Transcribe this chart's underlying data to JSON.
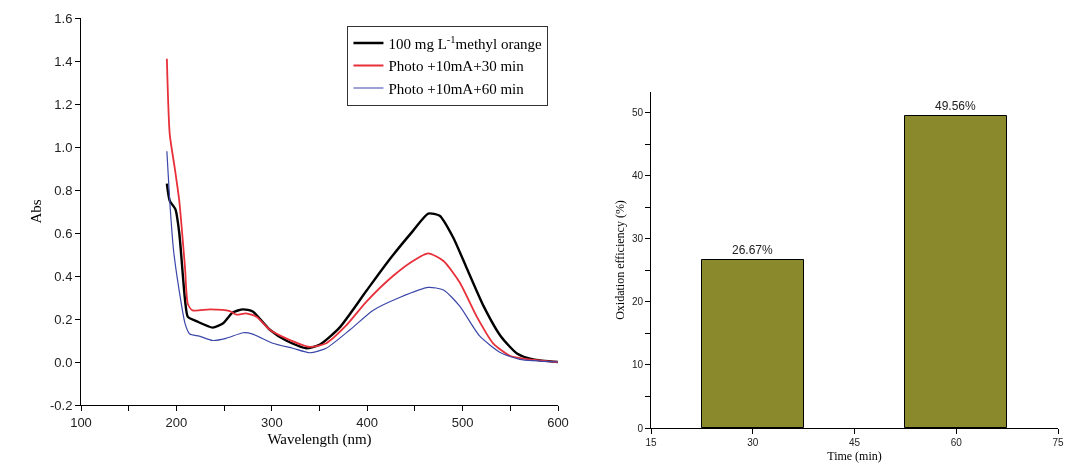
{
  "chart_data": [
    {
      "type": "line",
      "xlabel": "Wavelength (nm)",
      "ylabel": "Abs",
      "xlim": [
        100,
        600
      ],
      "ylim": [
        -0.2,
        1.6
      ],
      "xticks": [
        100,
        {
          "value": 150,
          "label": null
        },
        200,
        {
          "value": 250,
          "label": null
        },
        300,
        {
          "value": 350,
          "label": null
        },
        400,
        {
          "value": 450,
          "label": null
        },
        500,
        {
          "value": 550,
          "label": null
        },
        600
      ],
      "yticks": [
        {
          "value": -0.2,
          "label": "-0.2"
        },
        {
          "value": 0,
          "label": "0.0"
        },
        0.2,
        0.4,
        0.6,
        0.8,
        {
          "value": 1,
          "label": "1.0"
        },
        1.2,
        1.4,
        1.6
      ],
      "grid": false,
      "legend": "top right",
      "marker": "none",
      "line_style": "solid",
      "series": [
        {
          "name": "100 mg L$^{-1}$methyl orange",
          "color": "#000000",
          "x": [
            190,
            193,
            199,
            203,
            209,
            212,
            221,
            238,
            249,
            259,
            270,
            280,
            298,
            315,
            336,
            350,
            371,
            399,
            424,
            448,
            464,
            476,
            490,
            504,
            522,
            540,
            557,
            574,
            600
          ],
          "values": [
            0.83,
            0.75,
            0.71,
            0.6,
            0.29,
            0.21,
            0.19,
            0.16,
            0.18,
            0.23,
            0.245,
            0.235,
            0.15,
            0.1,
            0.064,
            0.08,
            0.16,
            0.33,
            0.48,
            0.61,
            0.69,
            0.68,
            0.58,
            0.44,
            0.26,
            0.12,
            0.04,
            0.012,
            0.0
          ]
        },
        {
          "name": "Photo +10mA+30 min",
          "color": "#e8303a",
          "x": [
            190,
            193,
            198,
            203,
            209,
            212,
            217,
            235,
            256,
            263,
            273,
            284,
            298,
            315,
            340,
            357,
            378,
            399,
            427,
            448,
            464,
            480,
            497,
            515,
            532,
            550,
            574,
            600
          ],
          "values": [
            1.41,
            1.06,
            0.91,
            0.75,
            0.44,
            0.27,
            0.24,
            0.245,
            0.237,
            0.22,
            0.226,
            0.21,
            0.15,
            0.11,
            0.07,
            0.087,
            0.17,
            0.28,
            0.4,
            0.47,
            0.505,
            0.47,
            0.37,
            0.21,
            0.087,
            0.028,
            0.01,
            0.0
          ]
        },
        {
          "name": "Photo +10mA+60 min",
          "color": "#3a46a8",
          "x": [
            190,
            193,
            197,
            203,
            209,
            214,
            224,
            238,
            252,
            270,
            280,
            301,
            322,
            340,
            357,
            382,
            406,
            434,
            464,
            480,
            497,
            518,
            540,
            560,
            600
          ],
          "values": [
            0.98,
            0.75,
            0.52,
            0.33,
            0.18,
            0.13,
            0.12,
            0.1,
            0.11,
            0.136,
            0.13,
            0.087,
            0.064,
            0.043,
            0.064,
            0.15,
            0.24,
            0.3,
            0.347,
            0.335,
            0.26,
            0.12,
            0.043,
            0.012,
            0.0
          ]
        }
      ]
    },
    {
      "type": "bar",
      "xlabel": "Time (min)",
      "ylabel": "Oxidation efficiency (%)",
      "x": [
        30,
        60
      ],
      "values": [
        26.67,
        49.56
      ],
      "value_labels": [
        "26.67%",
        "49.56%"
      ],
      "color": "#8a8a2c",
      "xlim": [
        15,
        75
      ],
      "xticks": [
        15,
        30,
        45,
        60,
        75
      ],
      "ylim": [
        0,
        53.3
      ],
      "yticks": [
        0,
        {
          "value": 5,
          "label": null
        },
        10,
        {
          "value": 15,
          "label": null
        },
        20,
        {
          "value": 25,
          "label": null
        },
        30,
        {
          "value": 35,
          "label": null
        },
        40,
        {
          "value": 45,
          "label": null
        },
        50
      ],
      "grid": false,
      "legend": false
    }
  ]
}
